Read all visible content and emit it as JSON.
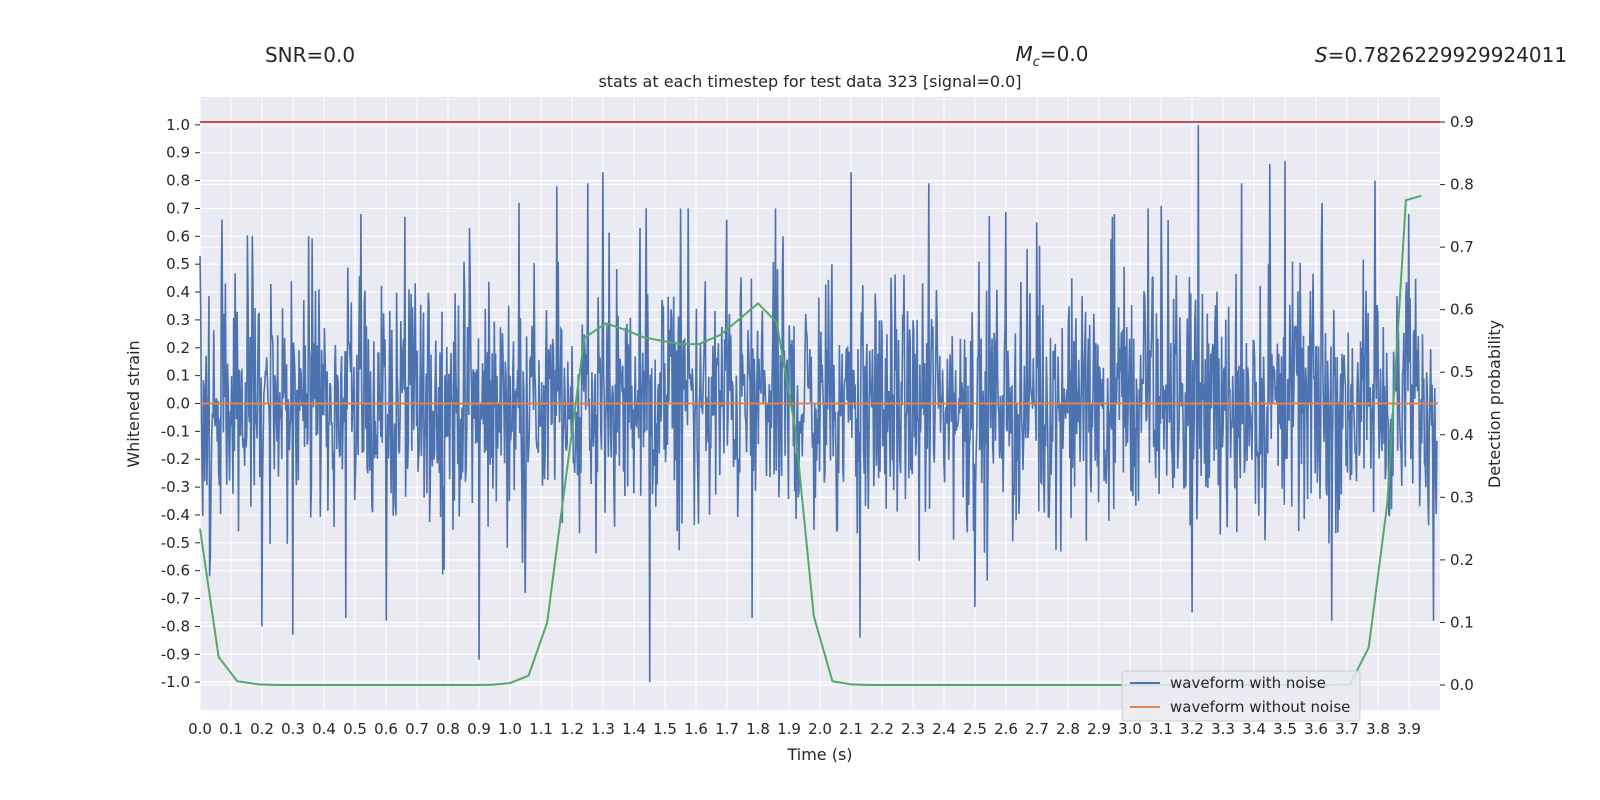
{
  "chart_data": {
    "type": "line",
    "title": "stats at each timestep for test data 323 [signal=0.0]",
    "stats": {
      "snr": "SNR=0.0",
      "mc_symbol": "M",
      "mc_sub": "c",
      "mc_value": "=0.0",
      "s_symbol": "S",
      "s_value": "=0.7826229929924011"
    },
    "xlabel": "Time (s)",
    "ylabel_left": "Whitened strain",
    "ylabel_right": "Detection probability",
    "xlim": [
      0.0,
      4.0
    ],
    "ylim_left": [
      -1.1,
      1.1
    ],
    "ylim_right": [
      -0.04,
      0.94
    ],
    "x_ticks": [
      "0.0",
      "0.1",
      "0.2",
      "0.3",
      "0.4",
      "0.5",
      "0.6",
      "0.7",
      "0.8",
      "0.9",
      "1.0",
      "1.1",
      "1.2",
      "1.3",
      "1.4",
      "1.5",
      "1.6",
      "1.7",
      "1.8",
      "1.9",
      "2.0",
      "2.1",
      "2.2",
      "2.3",
      "2.4",
      "2.5",
      "2.6",
      "2.7",
      "2.8",
      "2.9",
      "3.0",
      "3.1",
      "3.2",
      "3.3",
      "3.4",
      "3.5",
      "3.6",
      "3.7",
      "3.8",
      "3.9"
    ],
    "y_ticks_left": [
      "1.0",
      "0.9",
      "0.8",
      "0.7",
      "0.6",
      "0.5",
      "0.4",
      "0.3",
      "0.2",
      "0.1",
      "0.0",
      "-0.1",
      "-0.2",
      "-0.3",
      "-0.4",
      "-0.5",
      "-0.6",
      "-0.7",
      "-0.8",
      "-0.9",
      "-1.0"
    ],
    "y_ticks_right": [
      "0.9",
      "0.8",
      "0.7",
      "0.6",
      "0.5",
      "0.4",
      "0.3",
      "0.2",
      "0.1",
      "0.0"
    ],
    "threshold_line": {
      "axis": "right",
      "value": 0.9,
      "color": "#c44e52"
    },
    "series": [
      {
        "name": "waveform with noise",
        "color": "#4c72b0",
        "axis": "left",
        "description": "noisy whitened strain, mostly within ±0.5",
        "envelope_upper_peaks": [
          [
            0.0,
            0.53
          ],
          [
            0.07,
            0.66
          ],
          [
            0.2,
            0.58
          ],
          [
            0.35,
            0.6
          ],
          [
            0.52,
            0.68
          ],
          [
            0.66,
            0.67
          ],
          [
            0.87,
            0.63
          ],
          [
            1.03,
            0.72
          ],
          [
            1.15,
            0.78
          ],
          [
            1.25,
            0.79
          ],
          [
            1.3,
            0.83
          ],
          [
            1.42,
            0.63
          ],
          [
            1.55,
            0.7
          ],
          [
            1.7,
            0.66
          ],
          [
            1.88,
            0.6
          ],
          [
            2.1,
            0.83
          ],
          [
            2.35,
            0.79
          ],
          [
            2.5,
            0.79
          ],
          [
            2.7,
            0.65
          ],
          [
            2.95,
            0.68
          ],
          [
            3.1,
            0.71
          ],
          [
            3.22,
            1.0
          ],
          [
            3.36,
            0.79
          ],
          [
            3.45,
            0.86
          ],
          [
            3.5,
            0.87
          ],
          [
            3.62,
            0.72
          ],
          [
            3.79,
            0.8
          ],
          [
            3.9,
            0.68
          ]
        ],
        "envelope_lower_peaks": [
          [
            0.03,
            -0.62
          ],
          [
            0.2,
            -0.8
          ],
          [
            0.3,
            -0.83
          ],
          [
            0.47,
            -0.77
          ],
          [
            0.6,
            -0.78
          ],
          [
            0.9,
            -0.92
          ],
          [
            1.05,
            -0.68
          ],
          [
            1.45,
            -1.0
          ],
          [
            1.78,
            -0.77
          ],
          [
            2.13,
            -0.84
          ],
          [
            2.5,
            -0.73
          ],
          [
            3.2,
            -0.75
          ],
          [
            3.65,
            -0.78
          ],
          [
            3.98,
            -0.78
          ]
        ]
      },
      {
        "name": "waveform without noise",
        "color": "#dd8452",
        "axis": "left",
        "x": [
          0.0,
          4.0
        ],
        "values": [
          0.0,
          0.0
        ]
      },
      {
        "name": "detection probability",
        "color": "#55a868",
        "axis": "right",
        "x": [
          0.0,
          0.06,
          0.12,
          0.19,
          0.25,
          0.31,
          0.38,
          0.44,
          0.5,
          0.56,
          0.62,
          0.69,
          0.75,
          0.81,
          0.88,
          0.94,
          1.0,
          1.06,
          1.12,
          1.18,
          1.24,
          1.31,
          1.37,
          1.43,
          1.49,
          1.55,
          1.61,
          1.68,
          1.74,
          1.8,
          1.86,
          1.92,
          1.98,
          2.04,
          2.1,
          2.16,
          2.23,
          2.29,
          2.35,
          2.41,
          2.47,
          2.53,
          2.6,
          2.66,
          2.72,
          2.78,
          2.84,
          2.9,
          2.97,
          3.03,
          3.09,
          3.15,
          3.22,
          3.28,
          3.34,
          3.4,
          3.46,
          3.53,
          3.59,
          3.65,
          3.71,
          3.77,
          3.83,
          3.89,
          3.94
        ],
        "values": [
          0.25,
          0.045,
          0.006,
          0.001,
          0.0,
          0.0,
          0.0,
          0.0,
          0.0,
          0.0,
          0.0,
          0.0,
          0.0,
          0.0,
          0.0,
          0.0005,
          0.003,
          0.015,
          0.1,
          0.33,
          0.555,
          0.578,
          0.568,
          0.556,
          0.55,
          0.545,
          0.545,
          0.56,
          0.585,
          0.61,
          0.58,
          0.41,
          0.11,
          0.006,
          0.001,
          0.0,
          0.0,
          0.0,
          0.0,
          0.0,
          0.0,
          0.0,
          0.0,
          0.0,
          0.0,
          0.0,
          0.0,
          0.0,
          0.0,
          0.0,
          0.0,
          0.0,
          0.0,
          0.0,
          0.0,
          0.0,
          0.0,
          0.0,
          0.0,
          0.0,
          0.001,
          0.06,
          0.29,
          0.775,
          0.782
        ]
      }
    ],
    "legend": {
      "placement": "bottom-right",
      "items": [
        {
          "label": "waveform with noise",
          "color": "#4c72b0"
        },
        {
          "label": "waveform without noise",
          "color": "#dd8452"
        }
      ]
    }
  }
}
